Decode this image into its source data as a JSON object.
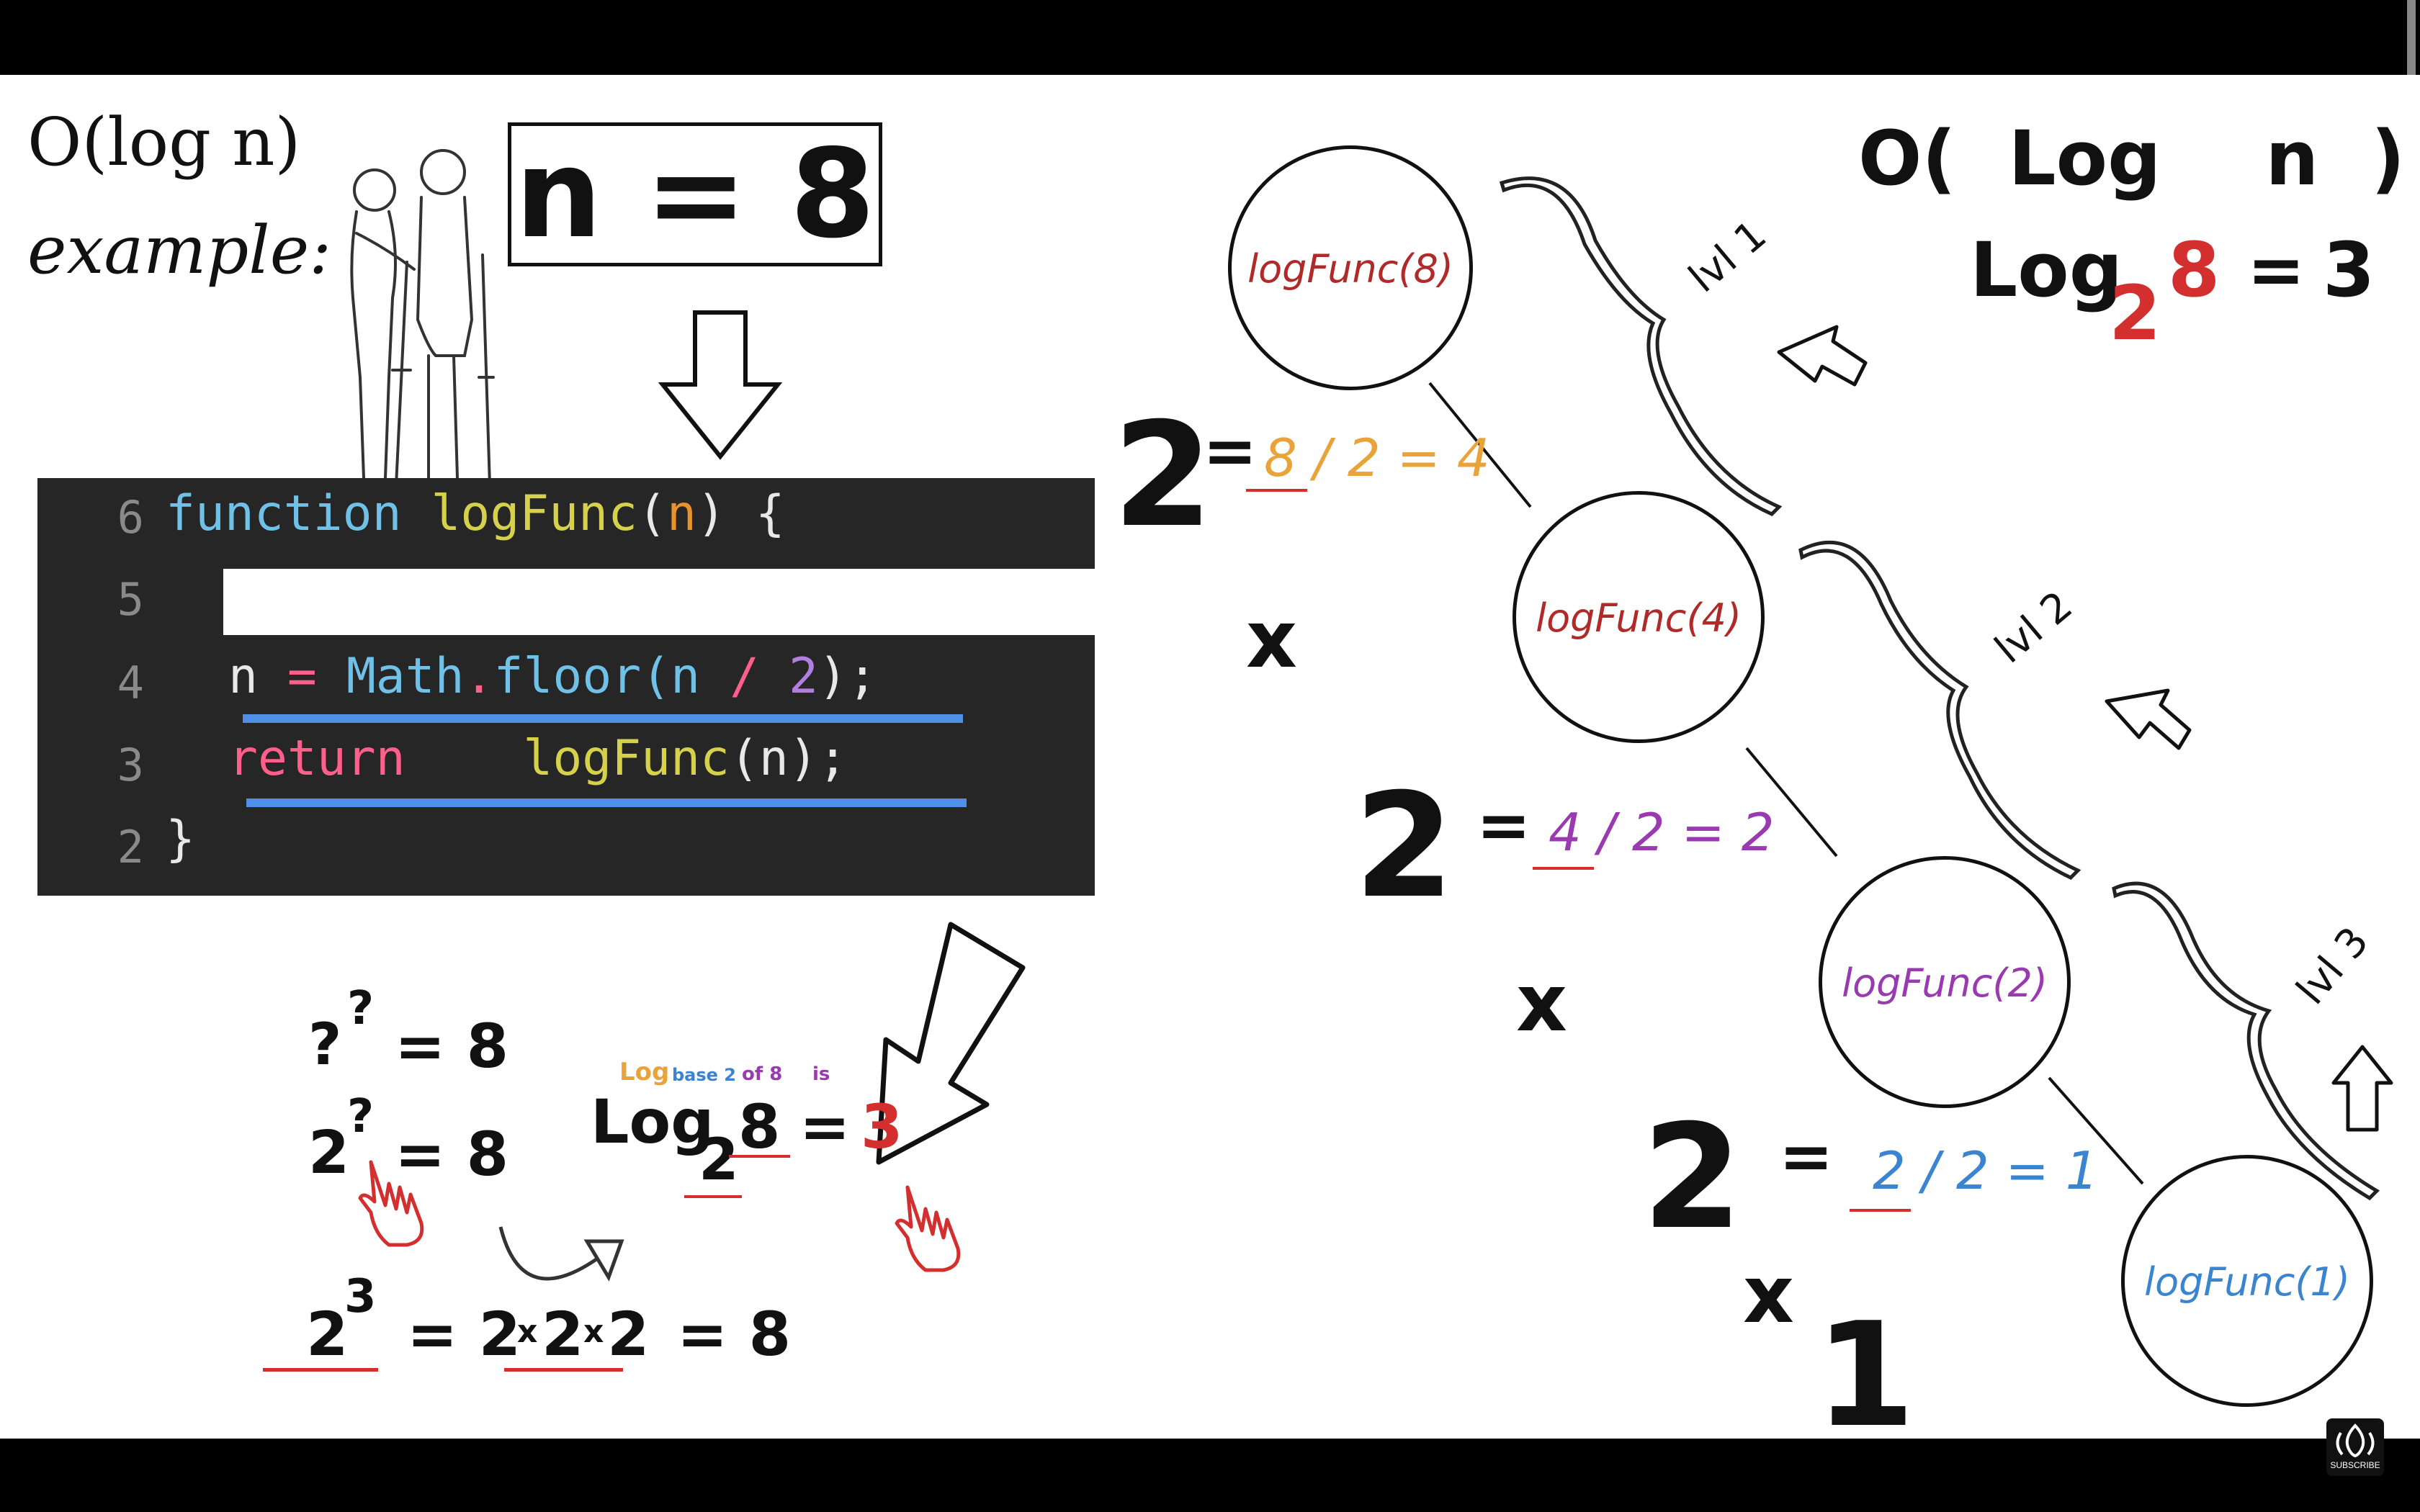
{
  "title": {
    "line1": "O(log n)",
    "line2": "example:"
  },
  "n_box": "n = 8",
  "code": {
    "lines": [
      {
        "num": "6"
      },
      {
        "num": "5"
      },
      {
        "num": "4"
      },
      {
        "num": "3"
      },
      {
        "num": "2"
      }
    ],
    "l6": {
      "kw": "function",
      "fn": "logFunc",
      "open": "(",
      "param": "n",
      "close": ") {"
    },
    "l4": {
      "var": "n",
      "eq": "=",
      "obj": "Math",
      "dot": ".",
      "fn": "floor(n",
      "div": "/",
      "num": "2",
      "end": ");"
    },
    "l3": {
      "kw": "return",
      "fn": "logFunc",
      "end": "(n);"
    },
    "l2": {
      "brace": "}"
    }
  },
  "math_left": {
    "q_base": "?",
    "q_exp": "?",
    "q_eq": "= 8",
    "two_base": "2",
    "two_exp": "?",
    "two_eq": "= 8",
    "log_word": "Log",
    "log_base2": "base 2",
    "log_of8": "of 8",
    "log_is": "is",
    "log_main": "Log",
    "log_sub": "2",
    "log_arg": "8",
    "log_eq": "=",
    "log_ans": "3",
    "pow_base": "2",
    "pow_exp": "3",
    "pow_rest1": "= 2",
    "pow_x1": "x",
    "pow_two2": "2",
    "pow_x2": "x",
    "pow_two3": "2",
    "pow_rest2": "= 8"
  },
  "tree": {
    "nodes": [
      {
        "label": "logFunc(8)",
        "color": "#b02a2a"
      },
      {
        "label": "logFunc(4)",
        "color": "#b02a2a"
      },
      {
        "label": "logFunc(2)",
        "color": "#9a3ab0"
      },
      {
        "label": "logFunc(1)",
        "color": "#3a84d0"
      }
    ],
    "levels": [
      "lvl 1",
      "lvl 2",
      "lvl 3"
    ],
    "factors": {
      "two_a": "2",
      "eq_a": "=",
      "expr_a": "8 / 2 = 4",
      "x_a": "x",
      "two_b": "2",
      "eq_b": "=",
      "expr_b": "4 / 2 = 2",
      "x_b": "x",
      "two_c": "2",
      "eq_c": "=",
      "expr_c": "2 / 2 = 1",
      "x_c": "x",
      "one": "1"
    }
  },
  "big_o": {
    "label": "O(  Log    n  )",
    "log": "Log",
    "sub": "2",
    "arg": "8",
    "eq": "=",
    "ans": "3"
  },
  "subscribe": "SUBSCRIBE",
  "colors": {
    "orange": "#e8a33a",
    "purple": "#9a3ab0",
    "blue": "#3a84d0",
    "red": "#d32f2f",
    "darkred": "#b02a2a"
  }
}
